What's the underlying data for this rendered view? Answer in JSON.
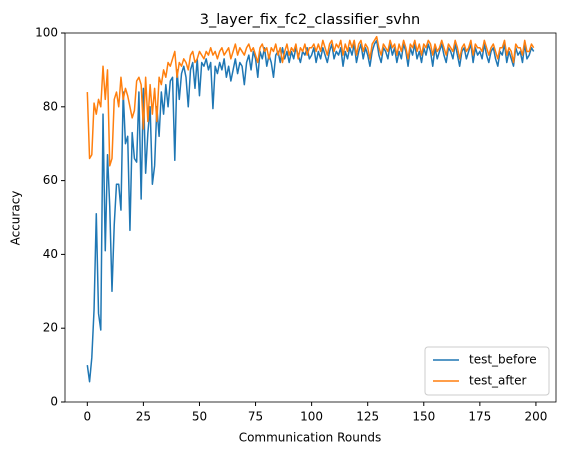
{
  "chart_data": {
    "type": "line",
    "title": "3_layer_fix_fc2_classifier_svhn",
    "x_label": "Communication Rounds",
    "y_label": "Accuracy",
    "x": [
      0,
      1,
      2,
      3,
      4,
      5,
      6,
      7,
      8,
      9,
      10,
      11,
      12,
      13,
      14,
      15,
      16,
      17,
      18,
      19,
      20,
      21,
      22,
      23,
      24,
      25,
      26,
      27,
      28,
      29,
      30,
      31,
      32,
      33,
      34,
      35,
      36,
      37,
      38,
      39,
      40,
      41,
      42,
      43,
      44,
      45,
      46,
      47,
      48,
      49,
      50,
      51,
      52,
      53,
      54,
      55,
      56,
      57,
      58,
      59,
      60,
      61,
      62,
      63,
      64,
      65,
      66,
      67,
      68,
      69,
      70,
      71,
      72,
      73,
      74,
      75,
      76,
      77,
      78,
      79,
      80,
      81,
      82,
      83,
      84,
      85,
      86,
      87,
      88,
      89,
      90,
      91,
      92,
      93,
      94,
      95,
      96,
      97,
      98,
      99,
      100,
      101,
      102,
      103,
      104,
      105,
      106,
      107,
      108,
      109,
      110,
      111,
      112,
      113,
      114,
      115,
      116,
      117,
      118,
      119,
      120,
      121,
      122,
      123,
      124,
      125,
      126,
      127,
      128,
      129,
      130,
      131,
      132,
      133,
      134,
      135,
      136,
      137,
      138,
      139,
      140,
      141,
      142,
      143,
      144,
      145,
      146,
      147,
      148,
      149,
      150,
      151,
      152,
      153,
      154,
      155,
      156,
      157,
      158,
      159,
      160,
      161,
      162,
      163,
      164,
      165,
      166,
      167,
      168,
      169,
      170,
      171,
      172,
      173,
      174,
      175,
      176,
      177,
      178,
      179,
      180,
      181,
      182,
      183,
      184,
      185,
      186,
      187,
      188,
      189,
      190,
      191,
      192,
      193,
      194,
      195,
      196,
      197,
      198,
      199
    ],
    "series": [
      {
        "name": "test_before",
        "color": "#1f77b4",
        "values": [
          10,
          5.5,
          12,
          25,
          51,
          24,
          19.5,
          78,
          41,
          67,
          53,
          30,
          48,
          59,
          59,
          52,
          84,
          70,
          72,
          46.5,
          73,
          66,
          65,
          84,
          55,
          85,
          62,
          73,
          80,
          59,
          64,
          80,
          72,
          84,
          78,
          86,
          80,
          87,
          88,
          65.5,
          90,
          82,
          89,
          91,
          88,
          80,
          90,
          92,
          85,
          93,
          83,
          92,
          91,
          93,
          90,
          92,
          79.5,
          91,
          89,
          92,
          90,
          93,
          88,
          91,
          87,
          90,
          93,
          89,
          92,
          91,
          86,
          92,
          94,
          90,
          95,
          93,
          88,
          95,
          93,
          96,
          91,
          94,
          92,
          88,
          94,
          95,
          92,
          96,
          93,
          95,
          92,
          95,
          93,
          96,
          94,
          92,
          95,
          94,
          96,
          93,
          94,
          96,
          92,
          95,
          93,
          96,
          94,
          92,
          95,
          97,
          93,
          95,
          94,
          96,
          91,
          95,
          93,
          96,
          94,
          97,
          92,
          95,
          97,
          93,
          96,
          94,
          91,
          95,
          97,
          98,
          94,
          92,
          96,
          95,
          93,
          97,
          94,
          96,
          92,
          95,
          93,
          97,
          95,
          91,
          96,
          94,
          97,
          93,
          95,
          92,
          96,
          94,
          97,
          95,
          91,
          96,
          93,
          95,
          97,
          94,
          92,
          96,
          95,
          93,
          97,
          94,
          91,
          95,
          96,
          93,
          95,
          97,
          92,
          96,
          94,
          95,
          93,
          97,
          94,
          92,
          95,
          96,
          93,
          91,
          95,
          94,
          97,
          92,
          95,
          93,
          91,
          96,
          94,
          95,
          92,
          97,
          93,
          94,
          96,
          95
        ]
      },
      {
        "name": "test_after",
        "color": "#ff7f0e",
        "values": [
          84,
          66,
          67,
          81,
          78,
          82,
          80,
          91,
          82,
          90,
          64,
          66,
          82,
          84,
          80,
          88,
          82,
          85,
          83,
          80,
          77,
          79,
          87,
          88,
          86,
          74,
          88,
          76,
          86,
          78,
          85,
          76,
          88,
          86,
          90,
          88,
          92,
          91,
          93,
          95,
          88,
          92,
          91,
          93,
          92,
          90,
          94,
          95,
          92,
          93,
          95,
          94,
          93,
          95,
          94,
          96,
          94,
          95,
          93,
          95,
          96,
          94,
          95,
          96,
          93,
          95,
          97,
          94,
          96,
          95,
          94,
          96,
          97,
          95,
          96,
          94,
          92,
          96,
          97,
          95,
          96,
          93,
          96,
          95,
          97,
          94,
          96,
          92,
          95,
          97,
          94,
          96,
          95,
          97,
          93,
          96,
          95,
          97,
          94,
          96,
          96,
          97,
          95,
          97,
          95,
          98,
          96,
          94,
          97,
          98,
          95,
          97,
          96,
          98,
          94,
          97,
          95,
          98,
          96,
          98,
          94,
          97,
          98,
          95,
          97,
          96,
          93,
          97,
          98,
          99,
          96,
          94,
          97,
          96,
          95,
          98,
          96,
          97,
          94,
          97,
          95,
          98,
          96,
          93,
          97,
          96,
          98,
          95,
          97,
          94,
          97,
          96,
          98,
          97,
          94,
          97,
          95,
          96,
          98,
          96,
          94,
          97,
          96,
          95,
          98,
          96,
          93,
          96,
          97,
          95,
          96,
          98,
          94,
          97,
          96,
          96,
          95,
          98,
          96,
          94,
          96,
          97,
          95,
          93,
          96,
          96,
          98,
          94,
          96,
          95,
          92,
          97,
          96,
          96,
          94,
          98,
          95,
          95,
          97,
          96
        ]
      }
    ],
    "xlim": [
      -9.95,
      208.95
    ],
    "ylim": [
      0,
      100
    ],
    "xticks": [
      0,
      25,
      50,
      75,
      100,
      125,
      150,
      175,
      200
    ],
    "yticks": [
      0,
      20,
      40,
      60,
      80,
      100
    ],
    "legend": "lower right"
  }
}
